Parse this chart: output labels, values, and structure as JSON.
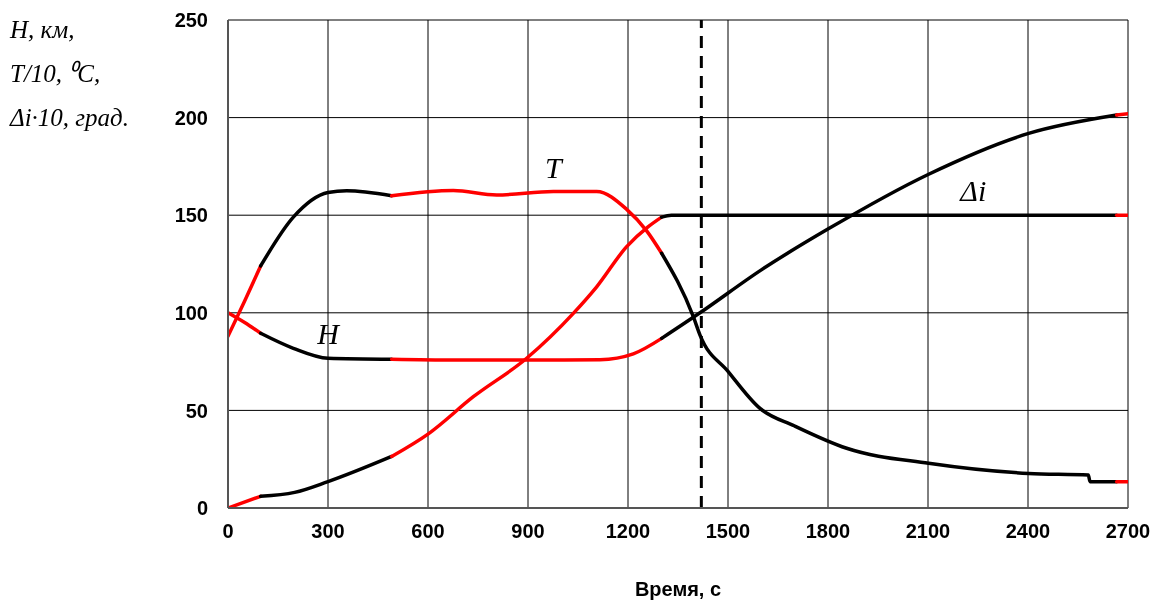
{
  "chart_data": {
    "type": "line",
    "xlabel": "Время, с",
    "ylabel": "H, км,\nT/10, ⁰C,\nΔi·10, град.",
    "xlim": [
      0,
      2700
    ],
    "xticks": [
      0,
      300,
      600,
      900,
      1200,
      1500,
      1800,
      2100,
      2400,
      2700
    ],
    "ylim": [
      0,
      250
    ],
    "yticks": [
      0,
      50,
      100,
      150,
      200,
      250
    ],
    "grid": true,
    "marker": "none",
    "line_style": "solid",
    "series": [
      {
        "color": "#ff0000",
        "x": [
          0,
          50,
          98
        ],
        "values": [
          88,
          106,
          124
        ]
      },
      {
        "color": "#000000",
        "x": [
          98,
          196,
          300,
          356,
          491
        ],
        "values": [
          124,
          149,
          161.6,
          162.5,
          160
        ]
      },
      {
        "name": "T",
        "color": "#ff0000",
        "x": [
          491,
          676,
          806,
          976,
          1106,
          1196,
          1256,
          1301
        ],
        "values": [
          160,
          162.7,
          160.4,
          162.1,
          162.1,
          153,
          142,
          130.5
        ]
      },
      {
        "color": "#000000",
        "x": [
          1301,
          1396,
          1416,
          1500,
          1596,
          1700,
          1856,
          2102,
          2402,
          2581,
          2586,
          2666
        ],
        "values": [
          130.5,
          98,
          88.6,
          70,
          51,
          42,
          30.6,
          22.9,
          17.7,
          16.9,
          13.5,
          13.5
        ]
      },
      {
        "color": "#ff0000",
        "x": [
          2666,
          2700
        ],
        "values": [
          13.5,
          13.5
        ]
      },
      {
        "color": "#ff0000",
        "x": [
          0,
          50,
          98
        ],
        "values": [
          100,
          95,
          89.5
        ]
      },
      {
        "name": "H",
        "color": "#000000",
        "x": [
          98,
          196,
          300,
          491
        ],
        "values": [
          89.5,
          81.8,
          76.7,
          76.2
        ]
      },
      {
        "color": "#ff0000",
        "x": [
          491,
          676,
          976,
          1116,
          1216,
          1301
        ],
        "values": [
          76.2,
          75.8,
          75.8,
          76,
          79,
          86.9
        ]
      },
      {
        "color": "#000000",
        "x": [
          1301,
          1416,
          1600,
          1801,
          2102,
          2402,
          2666
        ],
        "values": [
          86.9,
          100,
          122,
          143,
          171,
          191.9,
          201.3
        ]
      },
      {
        "color": "#ff0000",
        "x": [
          2666,
          2700
        ],
        "values": [
          201.3,
          202
        ]
      },
      {
        "color": "#ff0000",
        "x": [
          0,
          98
        ],
        "values": [
          0,
          6
        ]
      },
      {
        "color": "#000000",
        "x": [
          98,
          200,
          300,
          491
        ],
        "values": [
          6,
          8,
          13.5,
          26.4
        ]
      },
      {
        "color": "#ff0000",
        "x": [
          491,
          601,
          736,
          896,
          1036,
          1106,
          1196,
          1260,
          1301
        ],
        "values": [
          26.4,
          38,
          57,
          76.7,
          99.7,
          113.3,
          133.9,
          144,
          149
        ]
      },
      {
        "name": "Δi",
        "color": "#000000",
        "x": [
          1301,
          1330,
          2236,
          2666
        ],
        "values": [
          149,
          150,
          150,
          150
        ]
      },
      {
        "color": "#ff0000",
        "x": [
          2666,
          2700
        ],
        "values": [
          150,
          150
        ]
      }
    ],
    "ref_lines": [
      {
        "axis": "x",
        "value": 1420,
        "color": "#000000",
        "line_style": "dashed"
      }
    ]
  }
}
